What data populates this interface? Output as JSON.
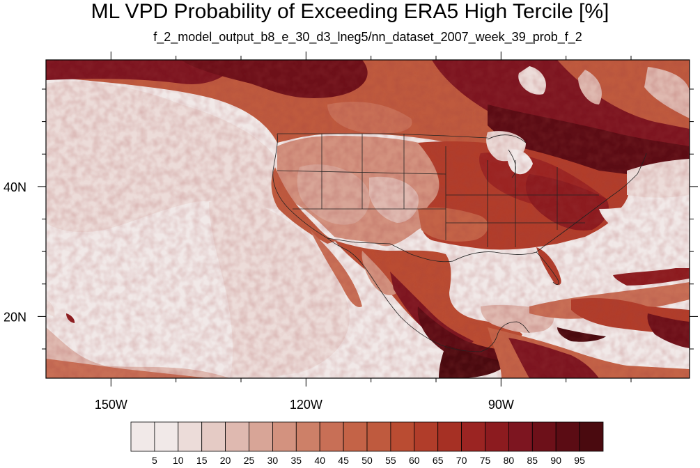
{
  "title": "ML VPD Probability of Exceeding ERA5 High Tercile [%]",
  "subtitle": "f_2_model_output_b8_e_30_d3_lneg5/nn_dataset_2007_week_39_prob_f_2",
  "map": {
    "projection": "cylindrical-equidistant",
    "lon_range": [
      -160,
      -61
    ],
    "lat_range": [
      10.5,
      59.5
    ],
    "lon_labels": [
      {
        "lon": -150,
        "label": "150W"
      },
      {
        "lon": -120,
        "label": "120W"
      },
      {
        "lon": -90,
        "label": "90W"
      }
    ],
    "lat_labels": [
      {
        "lat": 40,
        "label": "40N"
      },
      {
        "lat": 20,
        "label": "20N"
      }
    ],
    "region": "Continental US, Mexico, Central America, Caribbean, NE Pacific"
  },
  "colorbar": {
    "levels": [
      "5",
      "10",
      "15",
      "20",
      "25",
      "30",
      "35",
      "40",
      "45",
      "50",
      "55",
      "60",
      "65",
      "70",
      "75",
      "80",
      "85",
      "90",
      "95"
    ],
    "colors": [
      "#f1e9e8",
      "#ecdcd9",
      "#e5cbc5",
      "#dfb9b0",
      "#d8a597",
      "#d3927f",
      "#cd8068",
      "#c86f56",
      "#c46347",
      "#bf5a3e",
      "#ba4c32",
      "#b13d2a",
      "#a63024",
      "#9b2422",
      "#8c1b1f",
      "#7d1520",
      "#6d1019",
      "#5b0c14",
      "#4a0a0f"
    ]
  }
}
